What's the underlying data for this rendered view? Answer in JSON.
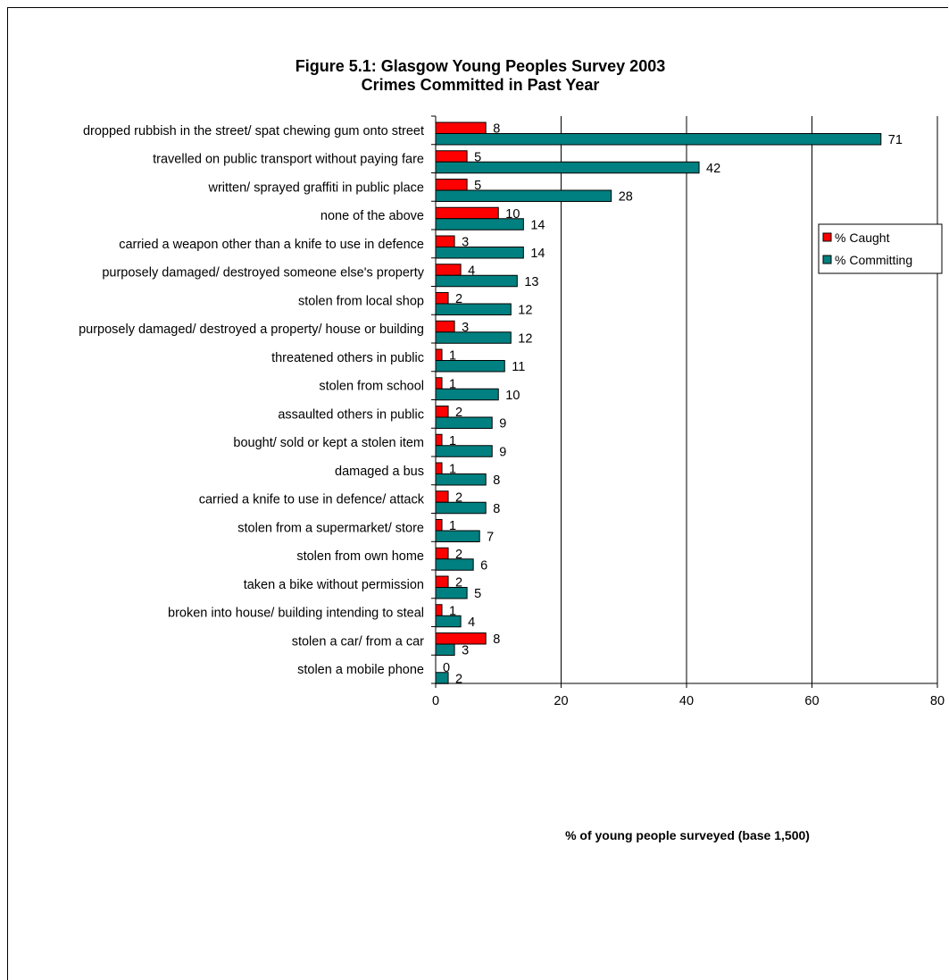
{
  "colors": {
    "caught": "#ff0000",
    "committing": "#008080",
    "gridline": "#000000",
    "background": "#ffffff"
  },
  "chart_data": {
    "type": "bar",
    "orientation": "horizontal",
    "title": "Figure 5.1:  Glasgow Young Peoples Survey 2003",
    "subtitle": "Crimes Committed in Past Year",
    "xlabel": "% of young people surveyed (base 1,500)",
    "ylabel": "",
    "xlim": [
      0,
      80
    ],
    "xticks": [
      "0",
      "20",
      "40",
      "60",
      "80"
    ],
    "grid": "vertical major gridlines",
    "legend_position": "right",
    "categories": [
      "dropped rubbish in the street/ spat chewing gum onto street",
      "travelled on public transport without paying fare",
      "written/ sprayed graffiti in public place",
      "none of the above",
      "carried a weapon other than a knife to use in defence",
      "purposely damaged/ destroyed someone else's property",
      "stolen from local shop",
      "purposely damaged/ destroyed a property/ house or building",
      "threatened others in public",
      "stolen from school",
      "assaulted others in public",
      "bought/ sold or kept a stolen item",
      "damaged a bus",
      "carried a knife to use in defence/ attack",
      "stolen from a supermarket/ store",
      "stolen from own home",
      "taken a bike without permission",
      "broken into house/ building intending to steal",
      "stolen a car/ from a car",
      "stolen a mobile phone"
    ],
    "series": [
      {
        "name": "% Caught",
        "values": [
          8,
          5,
          5,
          10,
          3,
          4,
          2,
          3,
          1,
          1,
          2,
          1,
          1,
          2,
          1,
          2,
          2,
          1,
          8,
          0
        ]
      },
      {
        "name": "% Committing",
        "values": [
          71,
          42,
          28,
          14,
          14,
          13,
          12,
          12,
          11,
          10,
          9,
          9,
          8,
          8,
          7,
          6,
          5,
          4,
          3,
          2
        ]
      }
    ]
  }
}
